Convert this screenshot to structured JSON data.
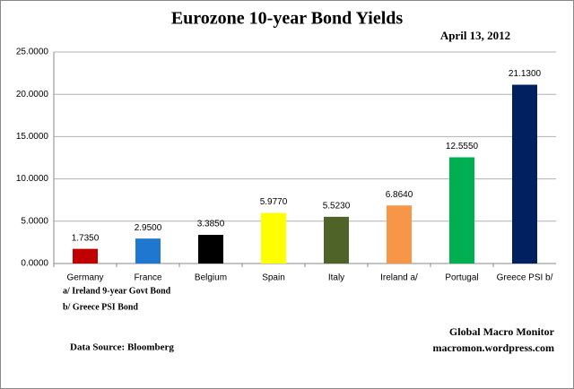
{
  "chart_data": {
    "type": "bar",
    "title": "Eurozone 10-year Bond Yields",
    "subtitle": "April 13, 2012",
    "categories": [
      "Germany",
      "France",
      "Belgium",
      "Spain",
      "Italy",
      "Ireland  a/",
      "Portugal",
      "Greece PSI b/"
    ],
    "values": [
      1.735,
      2.95,
      3.385,
      5.977,
      5.523,
      6.864,
      12.555,
      21.13
    ],
    "value_labels": [
      "1.7350",
      "2.9500",
      "3.3850",
      "5.9770",
      "5.5230",
      "6.8640",
      "12.5550",
      "21.1300"
    ],
    "colors": [
      "#c00000",
      "#1f77d0",
      "#000000",
      "#ffff00",
      "#4f6228",
      "#f79646",
      "#00b050",
      "#002060"
    ],
    "ylim": [
      0,
      25
    ],
    "yticks": [
      {
        "value": 0,
        "label": "0.0000"
      },
      {
        "value": 5,
        "label": "5.0000"
      },
      {
        "value": 10,
        "label": "10.0000"
      },
      {
        "value": 15,
        "label": "15.0000"
      },
      {
        "value": 20,
        "label": "20.0000"
      },
      {
        "value": 25,
        "label": "25.0000"
      }
    ],
    "grid": true,
    "annotations": [
      "a/  Ireland 9-year Govt Bond",
      "b/  Greece PSI Bond",
      "Data Source:  Bloomberg",
      "Global Macro Monitor",
      "macromon.wordpress.com"
    ]
  }
}
